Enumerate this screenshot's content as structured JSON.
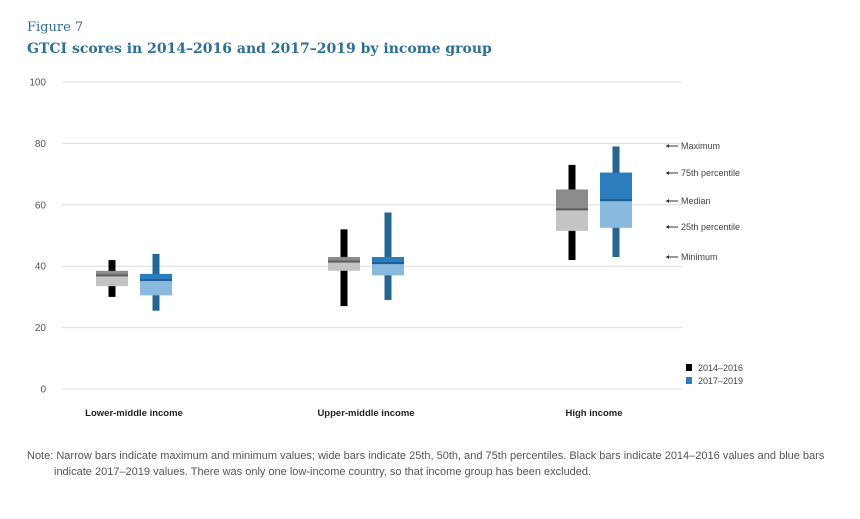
{
  "figure_label": "Figure 7",
  "title": "GTCI scores in 2014–2016 and 2017–2019 by income group",
  "note": "Note: Narrow bars indicate maximum and minimum values; wide bars indicate 25th, 50th, and 75th percentiles. Black bars indicate 2014–2016 values and blue bars indicate 2017–2019 values. There was only one low-income country, so that income group has been excluded.",
  "colors": {
    "series1_whisker": "#000000",
    "series1_upper": "#8c8c8c",
    "series1_lower": "#c4c4c4",
    "series1_median": "#5e5e5e",
    "series2_whisker": "#246591",
    "series2_upper": "#2b7dbd",
    "series2_lower": "#8ab9df",
    "series2_median": "#1f5f95",
    "grid": "#dddddd"
  },
  "chart_data": {
    "type": "box",
    "ylim": [
      0,
      100
    ],
    "yticks": [
      0,
      20,
      40,
      60,
      80,
      100
    ],
    "grid": true,
    "legend_position": "bottom-right",
    "categories": [
      "Lower-middle income",
      "Upper-middle income",
      "High income"
    ],
    "series": [
      {
        "name": "2014–2016",
        "boxes": [
          {
            "min": 30,
            "q1": 33.5,
            "median": 37,
            "q3": 38.5,
            "max": 42
          },
          {
            "min": 27,
            "q1": 38.5,
            "median": 41.5,
            "q3": 43,
            "max": 52
          },
          {
            "min": 42,
            "q1": 51.5,
            "median": 58.5,
            "q3": 65,
            "max": 73
          }
        ]
      },
      {
        "name": "2017–2019",
        "boxes": [
          {
            "min": 25.5,
            "q1": 30.5,
            "median": 35.5,
            "q3": 37.5,
            "max": 44
          },
          {
            "min": 29,
            "q1": 37,
            "median": 41,
            "q3": 43,
            "max": 57.5
          },
          {
            "min": 43,
            "q1": 52.5,
            "median": 61.5,
            "q3": 70.5,
            "max": 79
          }
        ]
      }
    ],
    "key_labels": [
      "Maximum",
      "75th percentile",
      "Median",
      "25th percentile",
      "Minimum"
    ]
  }
}
